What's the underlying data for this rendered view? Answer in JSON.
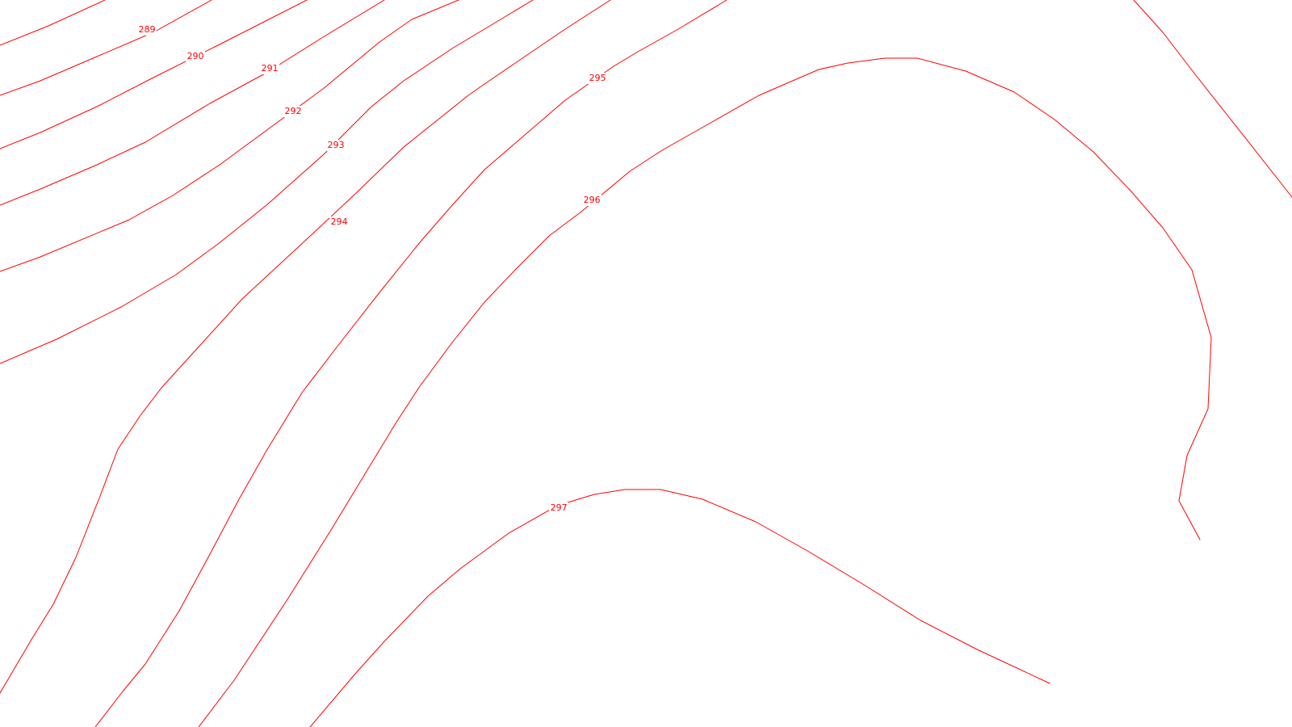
{
  "map": {
    "line_color": "#ff0000",
    "background_color": "#ffffff",
    "contours": [
      {
        "elevation": 289,
        "label": "289"
      },
      {
        "elevation": 290,
        "label": "290"
      },
      {
        "elevation": 291,
        "label": "291"
      },
      {
        "elevation": 292,
        "label": "292"
      },
      {
        "elevation": 293,
        "label": "293"
      },
      {
        "elevation": 294,
        "label": "294"
      },
      {
        "elevation": 295,
        "label": "295"
      },
      {
        "elevation": 296,
        "label": "296"
      },
      {
        "elevation": 297,
        "label": "297"
      }
    ]
  }
}
